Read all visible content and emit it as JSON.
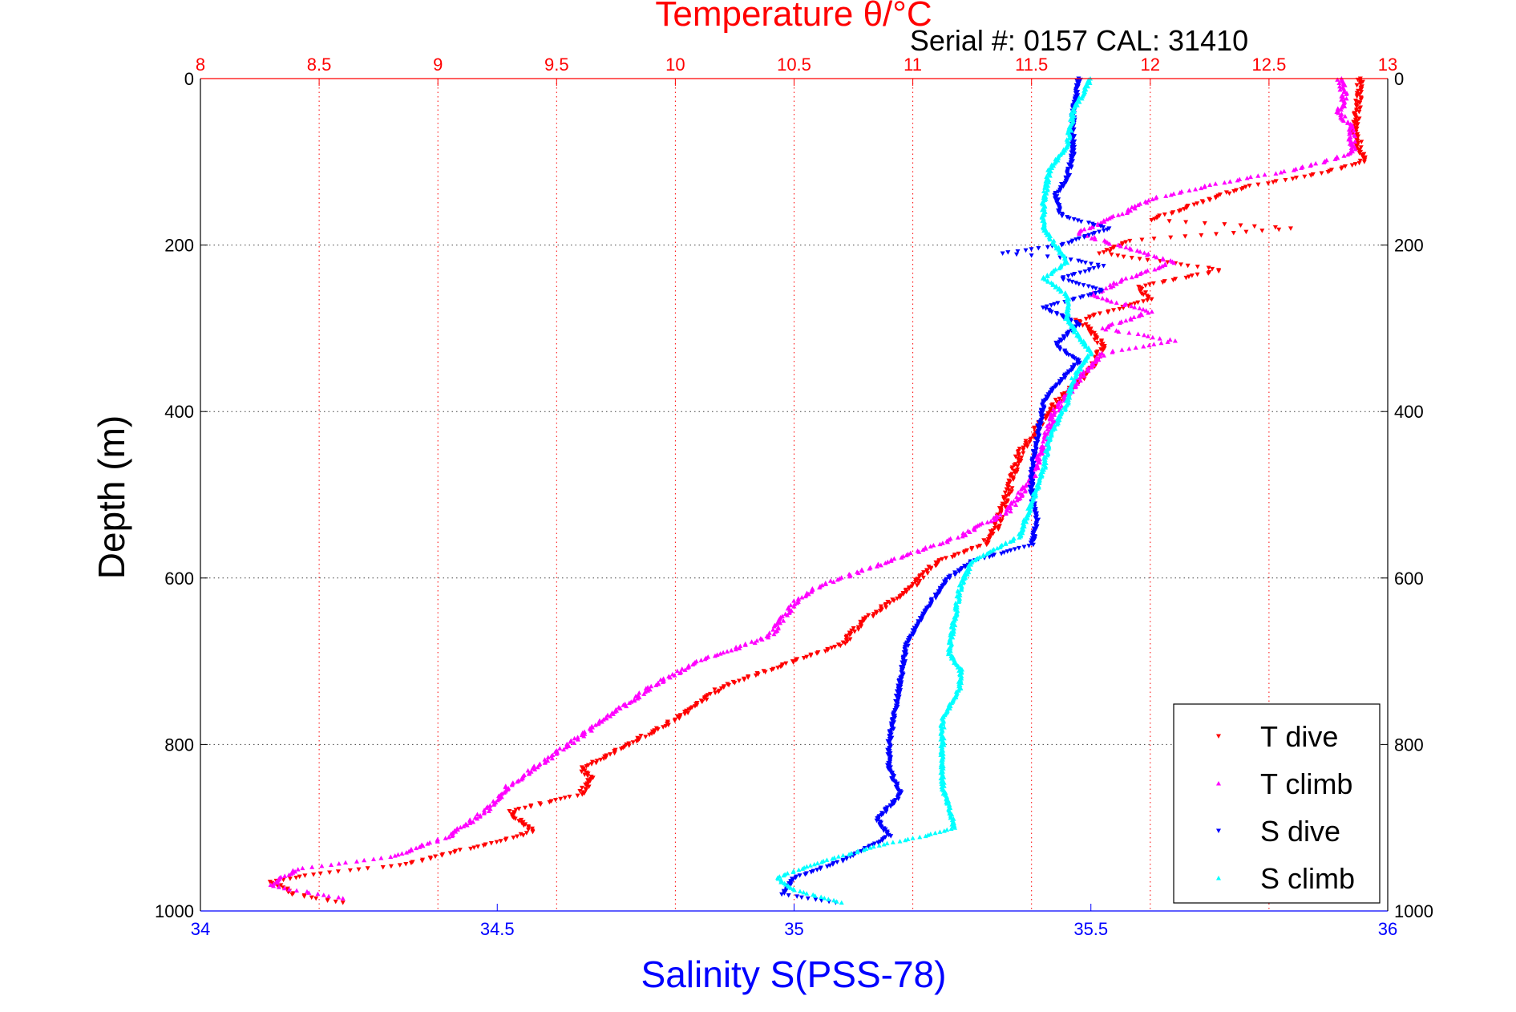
{
  "chart_data": {
    "type": "scatter",
    "title": "Temperature θ/°C",
    "subtitle": "Serial #: 0157  CAL: 31410",
    "xlabel_bottom": "Salinity S(PSS-78)",
    "ylabel": "Depth (m)",
    "top_axis": {
      "range": [
        8,
        13
      ],
      "ticks": [
        "8",
        "8.5",
        "9",
        "9.5",
        "10",
        "10.5",
        "11",
        "11.5",
        "12",
        "12.5",
        "13"
      ],
      "color": "#ff0000"
    },
    "bottom_axis": {
      "range": [
        34,
        36
      ],
      "ticks": [
        "34",
        "34.5",
        "35",
        "35.5",
        "36"
      ],
      "color": "#0000ff"
    },
    "y_axis": {
      "range": [
        0,
        1000
      ],
      "reversed": true,
      "ticks": [
        "0",
        "200",
        "400",
        "600",
        "800",
        "1000"
      ]
    },
    "grid": true,
    "legend_position": "bottom-right",
    "series": [
      {
        "name": "T dive",
        "axis": "temperature",
        "color": "#ff0000",
        "points": [
          [
            12.88,
            0
          ],
          [
            12.88,
            20
          ],
          [
            12.87,
            40
          ],
          [
            12.86,
            60
          ],
          [
            12.88,
            80
          ],
          [
            12.9,
            100
          ],
          [
            12.7,
            115
          ],
          [
            12.4,
            130
          ],
          [
            12.2,
            150
          ],
          [
            12.0,
            170
          ],
          [
            12.6,
            180
          ],
          [
            11.9,
            195
          ],
          [
            11.8,
            210
          ],
          [
            12.3,
            230
          ],
          [
            11.95,
            250
          ],
          [
            12.0,
            265
          ],
          [
            11.7,
            290
          ],
          [
            11.8,
            320
          ],
          [
            11.75,
            350
          ],
          [
            11.6,
            390
          ],
          [
            11.45,
            450
          ],
          [
            11.4,
            500
          ],
          [
            11.35,
            540
          ],
          [
            11.3,
            560
          ],
          [
            11.1,
            580
          ],
          [
            11.0,
            610
          ],
          [
            10.8,
            650
          ],
          [
            10.7,
            680
          ],
          [
            10.5,
            700
          ],
          [
            10.2,
            730
          ],
          [
            10.0,
            770
          ],
          [
            9.8,
            800
          ],
          [
            9.6,
            830
          ],
          [
            9.65,
            840
          ],
          [
            9.6,
            860
          ],
          [
            9.3,
            880
          ],
          [
            9.4,
            905
          ],
          [
            9.2,
            920
          ],
          [
            8.85,
            945
          ],
          [
            8.5,
            955
          ],
          [
            8.3,
            965
          ],
          [
            8.4,
            980
          ],
          [
            8.6,
            990
          ]
        ]
      },
      {
        "name": "T climb",
        "axis": "temperature",
        "color": "#ff00ff",
        "points": [
          [
            12.8,
            0
          ],
          [
            12.82,
            20
          ],
          [
            12.8,
            40
          ],
          [
            12.85,
            60
          ],
          [
            12.85,
            90
          ],
          [
            12.6,
            110
          ],
          [
            12.3,
            125
          ],
          [
            12.0,
            145
          ],
          [
            11.9,
            160
          ],
          [
            11.7,
            185
          ],
          [
            11.85,
            200
          ],
          [
            12.1,
            220
          ],
          [
            11.9,
            240
          ],
          [
            11.75,
            260
          ],
          [
            12.0,
            280
          ],
          [
            11.8,
            300
          ],
          [
            12.1,
            315
          ],
          [
            11.8,
            330
          ],
          [
            11.7,
            360
          ],
          [
            11.6,
            400
          ],
          [
            11.55,
            440
          ],
          [
            11.5,
            480
          ],
          [
            11.4,
            520
          ],
          [
            11.2,
            550
          ],
          [
            11.0,
            570
          ],
          [
            10.8,
            590
          ],
          [
            10.6,
            610
          ],
          [
            10.5,
            630
          ],
          [
            10.4,
            670
          ],
          [
            10.1,
            700
          ],
          [
            9.9,
            730
          ],
          [
            9.7,
            770
          ],
          [
            9.5,
            810
          ],
          [
            9.3,
            850
          ],
          [
            9.2,
            880
          ],
          [
            9.05,
            910
          ],
          [
            8.8,
            935
          ],
          [
            8.4,
            950
          ],
          [
            8.3,
            970
          ],
          [
            8.6,
            985
          ]
        ]
      },
      {
        "name": "S dive",
        "axis": "salinity",
        "color": "#0000ff",
        "points": [
          [
            35.48,
            0
          ],
          [
            35.47,
            40
          ],
          [
            35.47,
            90
          ],
          [
            35.46,
            120
          ],
          [
            35.44,
            140
          ],
          [
            35.45,
            165
          ],
          [
            35.53,
            180
          ],
          [
            35.45,
            200
          ],
          [
            35.35,
            210
          ],
          [
            35.45,
            215
          ],
          [
            35.52,
            225
          ],
          [
            35.45,
            240
          ],
          [
            35.52,
            255
          ],
          [
            35.42,
            275
          ],
          [
            35.48,
            295
          ],
          [
            35.44,
            320
          ],
          [
            35.48,
            340
          ],
          [
            35.44,
            370
          ],
          [
            35.42,
            390
          ],
          [
            35.41,
            430
          ],
          [
            35.4,
            470
          ],
          [
            35.4,
            500
          ],
          [
            35.41,
            530
          ],
          [
            35.4,
            560
          ],
          [
            35.3,
            580
          ],
          [
            35.26,
            600
          ],
          [
            35.22,
            640
          ],
          [
            35.19,
            680
          ],
          [
            35.18,
            720
          ],
          [
            35.17,
            760
          ],
          [
            35.16,
            800
          ],
          [
            35.16,
            830
          ],
          [
            35.18,
            860
          ],
          [
            35.14,
            890
          ],
          [
            35.16,
            910
          ],
          [
            35.08,
            940
          ],
          [
            35.0,
            960
          ],
          [
            34.98,
            980
          ],
          [
            35.07,
            990
          ]
        ]
      },
      {
        "name": "S climb",
        "axis": "salinity",
        "color": "#00ffff",
        "points": [
          [
            35.5,
            0
          ],
          [
            35.47,
            40
          ],
          [
            35.46,
            80
          ],
          [
            35.43,
            110
          ],
          [
            35.42,
            150
          ],
          [
            35.42,
            180
          ],
          [
            35.44,
            200
          ],
          [
            35.46,
            220
          ],
          [
            35.42,
            240
          ],
          [
            35.46,
            260
          ],
          [
            35.46,
            290
          ],
          [
            35.48,
            310
          ],
          [
            35.5,
            330
          ],
          [
            35.47,
            360
          ],
          [
            35.46,
            390
          ],
          [
            35.43,
            430
          ],
          [
            35.42,
            470
          ],
          [
            35.4,
            510
          ],
          [
            35.38,
            550
          ],
          [
            35.3,
            580
          ],
          [
            35.28,
            610
          ],
          [
            35.27,
            650
          ],
          [
            35.26,
            690
          ],
          [
            35.28,
            710
          ],
          [
            35.28,
            730
          ],
          [
            35.25,
            770
          ],
          [
            35.25,
            810
          ],
          [
            35.25,
            850
          ],
          [
            35.27,
            900
          ],
          [
            35.22,
            910
          ],
          [
            35.15,
            920
          ],
          [
            35.05,
            940
          ],
          [
            34.97,
            960
          ],
          [
            35.0,
            975
          ],
          [
            35.08,
            990
          ]
        ]
      }
    ]
  }
}
